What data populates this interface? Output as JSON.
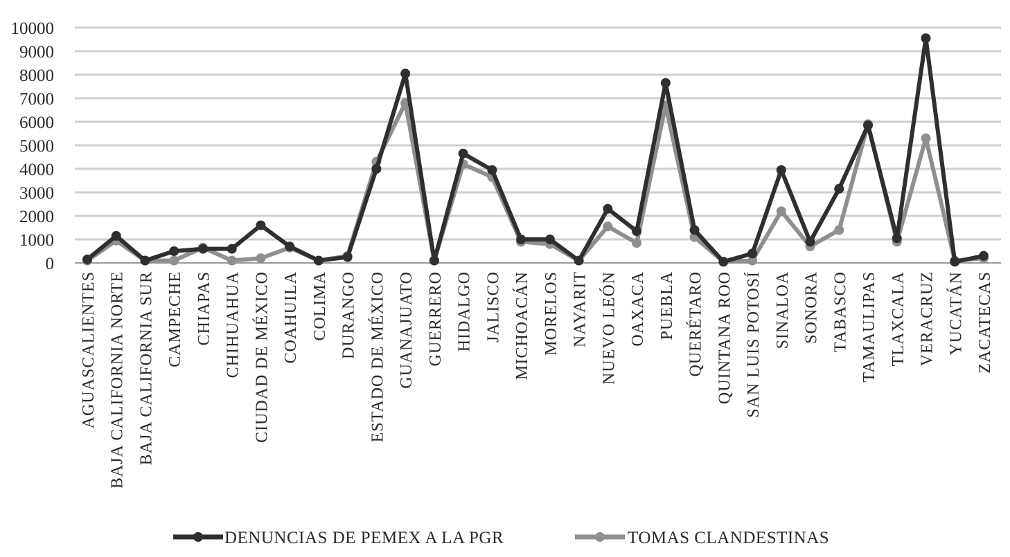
{
  "chart_data": {
    "type": "line",
    "title": "",
    "xlabel": "",
    "ylabel": "",
    "ylim": [
      0,
      10000
    ],
    "yticks": [
      0,
      1000,
      2000,
      3000,
      4000,
      5000,
      6000,
      7000,
      8000,
      9000,
      10000
    ],
    "ytick_labels": [
      "0",
      "1000",
      "2000",
      "3000",
      "4000",
      "5000",
      "6000",
      "7000",
      "8000",
      "9000",
      "10000"
    ],
    "grid": "horizontal",
    "legend_position": "bottom",
    "categories": [
      "AGUASCALIENTES",
      "BAJA CALIFORNIA NORTE",
      "BAJA CALIFORNIA SUR",
      "CAMPECHE",
      "CHIAPAS",
      "CHIHUAHUA",
      "CIUDAD DE MÉXICO",
      "COAHUILA",
      "COLIMA",
      "DURANGO",
      "ESTADO DE MÉXICO",
      "GUANAJUATO",
      "GUERRERO",
      "HIDALGO",
      "JALISCO",
      "MICHOACÁN",
      "MORELOS",
      "NAYARIT",
      "NUEVO LEÓN",
      "OAXACA",
      "PUEBLA",
      "QUERÉTARO",
      "QUINTANA ROO",
      "SAN LUIS POTOSÍ",
      "SINALOA",
      "SONORA",
      "TABASCO",
      "TAMAULIPAS",
      "TLAXCALA",
      "VERACRUZ",
      "YUCATÁN",
      "ZACATECAS"
    ],
    "series": [
      {
        "name": "DENUNCIAS DE PEMEX A LA PGR",
        "color": "#2f2f2f",
        "values": [
          150,
          1150,
          100,
          500,
          600,
          600,
          1600,
          700,
          100,
          250,
          4000,
          8050,
          100,
          4650,
          3950,
          1000,
          1000,
          100,
          2300,
          1350,
          7650,
          1400,
          50,
          400,
          3950,
          900,
          3150,
          5850,
          1050,
          9550,
          50,
          300
        ]
      },
      {
        "name": "TOMAS CLANDESTINAS",
        "color": "#8f8f8f",
        "values": [
          100,
          950,
          100,
          100,
          650,
          100,
          200,
          650,
          100,
          300,
          4300,
          6800,
          100,
          4200,
          3650,
          900,
          800,
          100,
          1550,
          850,
          6700,
          1100,
          50,
          100,
          2200,
          700,
          1400,
          5900,
          900,
          5300,
          100,
          200
        ]
      }
    ]
  }
}
